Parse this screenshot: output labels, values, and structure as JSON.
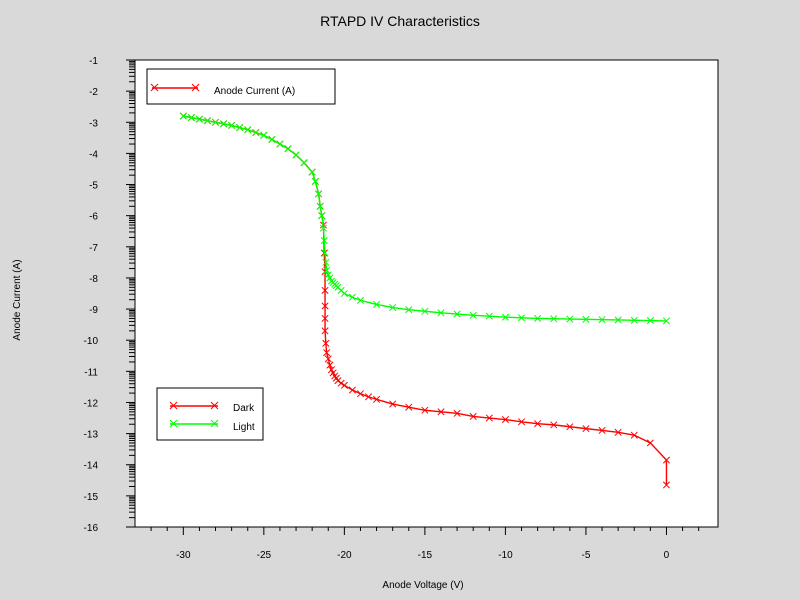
{
  "chart_data": {
    "type": "line",
    "title": "RTAPD IV Characteristics",
    "xlabel": "Anode Voltage (V)",
    "ylabel": "Anode Current (A)",
    "xlim": [
      -33,
      3.2
    ],
    "ylim": [
      -16,
      -1
    ],
    "y_scale": "log10 (tick labels show exponent)",
    "x_ticks": [
      -30,
      -25,
      -20,
      -15,
      -10,
      -5,
      0
    ],
    "x_tick_labels": [
      "-30",
      "-25",
      "-20",
      "-15",
      "-10",
      "-5",
      "0"
    ],
    "y_ticks": [
      -1,
      -2,
      -3,
      -4,
      -5,
      -6,
      -7,
      -8,
      -9,
      -10,
      -11,
      -12,
      -13,
      -14,
      -15,
      -16
    ],
    "y_tick_labels": [
      "-1",
      "-2",
      "-3",
      "-4",
      "-5",
      "-6",
      "-7",
      "-8",
      "-9",
      "-10",
      "-11",
      "-12",
      "-13",
      "-14",
      "-15",
      "-16"
    ],
    "grid": false,
    "legend_top": {
      "position": "top-left",
      "entries": [
        {
          "label": "Anode Current (A)",
          "color": "#ff0000"
        }
      ]
    },
    "legend_series": {
      "position": "bottom-left",
      "entries": [
        {
          "label": "Dark",
          "color": "#ff0000"
        },
        {
          "label": "Light",
          "color": "#00ff00"
        }
      ]
    },
    "series": [
      {
        "name": "Dark",
        "color": "#ff0000",
        "marker": "x",
        "x": [
          -30,
          -29.5,
          -29,
          -28.5,
          -28,
          -27.5,
          -27,
          -26.5,
          -26,
          -25.5,
          -25,
          -24.5,
          -24,
          -23.5,
          -23,
          -22.5,
          -22,
          -21.8,
          -21.6,
          -21.5,
          -21.4,
          -21.3,
          -21.25,
          -21.2,
          -21.2,
          -21.2,
          -21.2,
          -21.2,
          -21.15,
          -21.1,
          -21.0,
          -20.9,
          -20.8,
          -20.7,
          -20.6,
          -20.5,
          -20.4,
          -20.2,
          -20.0,
          -19.5,
          -19.0,
          -18.5,
          -18.0,
          -17.0,
          -16.0,
          -15.0,
          -14.0,
          -13.0,
          -12.0,
          -11.0,
          -10.0,
          -9.0,
          -8.0,
          -7.0,
          -6.0,
          -5.0,
          -4.0,
          -3.0,
          -2.0,
          -1.0,
          0.0,
          0.0
        ],
        "y": [
          -2.8,
          -2.85,
          -2.9,
          -2.95,
          -3.0,
          -3.05,
          -3.1,
          -3.17,
          -3.24,
          -3.33,
          -3.42,
          -3.55,
          -3.7,
          -3.85,
          -4.05,
          -4.3,
          -4.6,
          -4.9,
          -5.3,
          -5.7,
          -6.0,
          -6.3,
          -7.2,
          -7.8,
          -8.4,
          -8.9,
          -9.3,
          -9.7,
          -10.1,
          -10.4,
          -10.6,
          -10.8,
          -10.95,
          -11.05,
          -11.15,
          -11.22,
          -11.3,
          -11.38,
          -11.45,
          -11.6,
          -11.72,
          -11.82,
          -11.9,
          -12.05,
          -12.15,
          -12.25,
          -12.3,
          -12.35,
          -12.45,
          -12.5,
          -12.55,
          -12.62,
          -12.68,
          -12.72,
          -12.78,
          -12.84,
          -12.9,
          -12.96,
          -13.05,
          -13.3,
          -13.85,
          -14.65
        ]
      },
      {
        "name": "Light",
        "color": "#00ff00",
        "marker": "x",
        "x": [
          -30,
          -29.5,
          -29,
          -28.5,
          -28,
          -27.5,
          -27,
          -26.5,
          -26,
          -25.5,
          -25,
          -24.5,
          -24,
          -23.5,
          -23,
          -22.5,
          -22,
          -21.8,
          -21.6,
          -21.5,
          -21.4,
          -21.3,
          -21.25,
          -21.2,
          -21.15,
          -21.1,
          -21.0,
          -20.9,
          -20.8,
          -20.7,
          -20.6,
          -20.5,
          -20.4,
          -20.2,
          -20.0,
          -19.5,
          -19.0,
          -18.0,
          -17.0,
          -16.0,
          -15.0,
          -14.0,
          -13.0,
          -12.0,
          -11.0,
          -10.0,
          -9.0,
          -8.0,
          -7.0,
          -6.0,
          -5.0,
          -4.0,
          -3.0,
          -2.0,
          -1.0,
          0.0
        ],
        "y": [
          -2.8,
          -2.85,
          -2.9,
          -2.95,
          -3.0,
          -3.05,
          -3.1,
          -3.17,
          -3.24,
          -3.33,
          -3.42,
          -3.55,
          -3.7,
          -3.85,
          -4.05,
          -4.3,
          -4.6,
          -4.9,
          -5.3,
          -5.7,
          -6.0,
          -6.4,
          -6.8,
          -7.2,
          -7.5,
          -7.75,
          -7.9,
          -8.0,
          -8.1,
          -8.15,
          -8.2,
          -8.25,
          -8.3,
          -8.4,
          -8.5,
          -8.62,
          -8.72,
          -8.85,
          -8.95,
          -9.02,
          -9.07,
          -9.12,
          -9.16,
          -9.2,
          -9.23,
          -9.26,
          -9.28,
          -9.3,
          -9.31,
          -9.32,
          -9.33,
          -9.34,
          -9.35,
          -9.36,
          -9.37,
          -9.38
        ]
      }
    ]
  }
}
